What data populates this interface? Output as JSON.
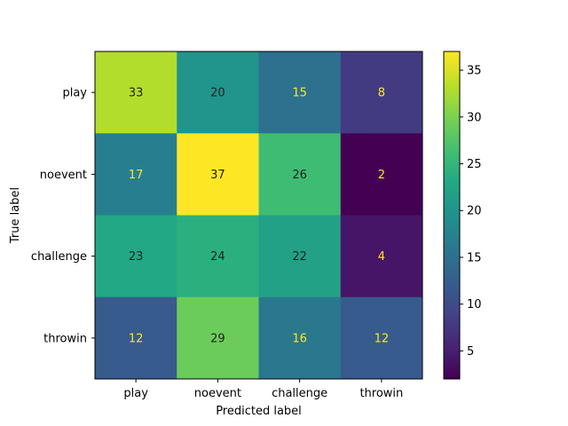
{
  "chart_data": {
    "type": "heatmap",
    "title": "",
    "xlabel": "Predicted label",
    "ylabel": "True label",
    "x_categories": [
      "play",
      "noevent",
      "challenge",
      "throwin"
    ],
    "y_categories": [
      "play",
      "noevent",
      "challenge",
      "throwin"
    ],
    "values": [
      [
        33,
        20,
        15,
        8
      ],
      [
        17,
        37,
        26,
        2
      ],
      [
        23,
        24,
        22,
        4
      ],
      [
        12,
        29,
        16,
        12
      ]
    ],
    "colormap": "viridis",
    "color_range": [
      2,
      37
    ],
    "colorbar_ticks": [
      5,
      10,
      15,
      20,
      25,
      30,
      35
    ],
    "text_color_dark": "#222222",
    "text_color_light": "#fde725",
    "grid": false
  }
}
